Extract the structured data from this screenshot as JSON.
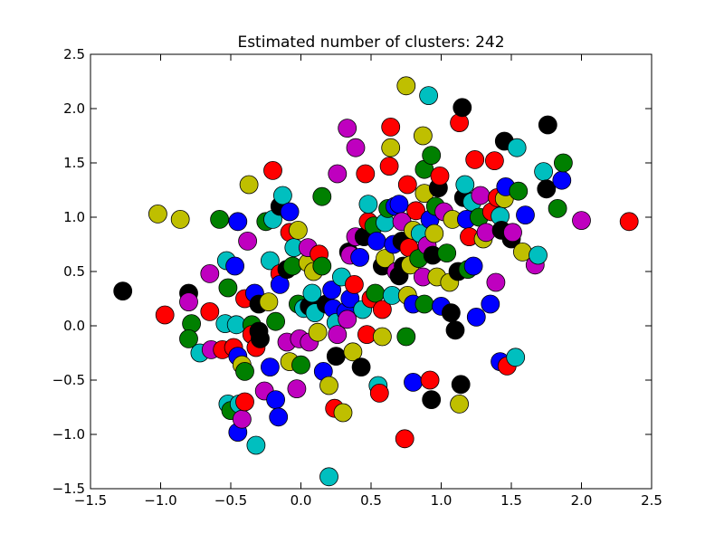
{
  "chart_data": {
    "type": "scatter",
    "title": "Estimated number of clusters: 242",
    "xlabel": "",
    "ylabel": "",
    "xlim": [
      -1.5,
      2.5
    ],
    "ylim": [
      -1.5,
      2.5
    ],
    "xticks": [
      "−1.5",
      "−1.0",
      "−0.5",
      "0.0",
      "0.5",
      "1.0",
      "1.5",
      "2.0",
      "2.5"
    ],
    "yticks": [
      "−1.5",
      "−1.0",
      "−0.5",
      "0.0",
      "0.5",
      "1.0",
      "1.5",
      "2.0",
      "2.5"
    ],
    "grid": false,
    "legend": "none",
    "colors": {
      "b": "#0000ff",
      "g": "#008000",
      "r": "#ff0000",
      "c": "#00bfbf",
      "m": "#bf00bf",
      "y": "#bfbf00",
      "k": "#000000"
    },
    "points": [
      {
        "x": -1.27,
        "y": 0.32,
        "c": "k"
      },
      {
        "x": -0.97,
        "y": 0.1,
        "c": "r"
      },
      {
        "x": -1.02,
        "y": 1.03,
        "c": "y"
      },
      {
        "x": -0.86,
        "y": 0.98,
        "c": "y"
      },
      {
        "x": -0.8,
        "y": 0.3,
        "c": "k"
      },
      {
        "x": -0.8,
        "y": 0.22,
        "c": "m"
      },
      {
        "x": -0.78,
        "y": 0.02,
        "c": "g"
      },
      {
        "x": -0.8,
        "y": -0.12,
        "c": "g"
      },
      {
        "x": -0.72,
        "y": -0.25,
        "c": "c"
      },
      {
        "x": -0.65,
        "y": 0.13,
        "c": "r"
      },
      {
        "x": -0.64,
        "y": -0.22,
        "c": "m"
      },
      {
        "x": -0.65,
        "y": 0.48,
        "c": "m"
      },
      {
        "x": -0.58,
        "y": 0.98,
        "c": "g"
      },
      {
        "x": -0.56,
        "y": -0.22,
        "c": "r"
      },
      {
        "x": -0.54,
        "y": 0.02,
        "c": "c"
      },
      {
        "x": -0.53,
        "y": 0.6,
        "c": "c"
      },
      {
        "x": -0.52,
        "y": 0.35,
        "c": "g"
      },
      {
        "x": -0.52,
        "y": -0.72,
        "c": "c"
      },
      {
        "x": -0.5,
        "y": -0.78,
        "c": "g"
      },
      {
        "x": -0.48,
        "y": -0.2,
        "c": "r"
      },
      {
        "x": -0.47,
        "y": 0.55,
        "c": "b"
      },
      {
        "x": -0.46,
        "y": 0.01,
        "c": "c"
      },
      {
        "x": -0.45,
        "y": -0.98,
        "c": "b"
      },
      {
        "x": -0.44,
        "y": -0.72,
        "c": "c"
      },
      {
        "x": -0.45,
        "y": -0.28,
        "c": "b"
      },
      {
        "x": -0.45,
        "y": 0.96,
        "c": "b"
      },
      {
        "x": -0.42,
        "y": -0.36,
        "c": "y"
      },
      {
        "x": -0.42,
        "y": -0.86,
        "c": "m"
      },
      {
        "x": -0.4,
        "y": -0.7,
        "c": "r"
      },
      {
        "x": -0.4,
        "y": -0.42,
        "c": "g"
      },
      {
        "x": -0.4,
        "y": 0.25,
        "c": "r"
      },
      {
        "x": -0.38,
        "y": 0.78,
        "c": "m"
      },
      {
        "x": -0.37,
        "y": 1.3,
        "c": "y"
      },
      {
        "x": -0.35,
        "y": 0.01,
        "c": "g"
      },
      {
        "x": -0.35,
        "y": -0.08,
        "c": "r"
      },
      {
        "x": -0.33,
        "y": 0.3,
        "c": "b"
      },
      {
        "x": -0.32,
        "y": -0.2,
        "c": "r"
      },
      {
        "x": -0.32,
        "y": -1.1,
        "c": "c"
      },
      {
        "x": -0.3,
        "y": 0.2,
        "c": "k"
      },
      {
        "x": -0.3,
        "y": -0.05,
        "c": "k"
      },
      {
        "x": -0.29,
        "y": -0.12,
        "c": "k"
      },
      {
        "x": -0.26,
        "y": -0.6,
        "c": "m"
      },
      {
        "x": -0.25,
        "y": 0.96,
        "c": "g"
      },
      {
        "x": -0.23,
        "y": 0.22,
        "c": "y"
      },
      {
        "x": -0.22,
        "y": 0.6,
        "c": "c"
      },
      {
        "x": -0.22,
        "y": -0.38,
        "c": "b"
      },
      {
        "x": -0.2,
        "y": 1.43,
        "c": "r"
      },
      {
        "x": -0.2,
        "y": 0.98,
        "c": "c"
      },
      {
        "x": -0.18,
        "y": 0.04,
        "c": "g"
      },
      {
        "x": -0.18,
        "y": -0.68,
        "c": "b"
      },
      {
        "x": -0.16,
        "y": -0.84,
        "c": "b"
      },
      {
        "x": -0.15,
        "y": 1.1,
        "c": "k"
      },
      {
        "x": -0.15,
        "y": 0.48,
        "c": "r"
      },
      {
        "x": -0.15,
        "y": 0.38,
        "c": "b"
      },
      {
        "x": -0.13,
        "y": 1.2,
        "c": "c"
      },
      {
        "x": -0.1,
        "y": -0.15,
        "c": "m"
      },
      {
        "x": -0.1,
        "y": 0.52,
        "c": "k"
      },
      {
        "x": -0.08,
        "y": -0.33,
        "c": "y"
      },
      {
        "x": -0.08,
        "y": 1.05,
        "c": "b"
      },
      {
        "x": -0.08,
        "y": 0.86,
        "c": "r"
      },
      {
        "x": -0.06,
        "y": 0.55,
        "c": "g"
      },
      {
        "x": -0.05,
        "y": 0.72,
        "c": "c"
      },
      {
        "x": -0.03,
        "y": -0.58,
        "c": "m"
      },
      {
        "x": -0.02,
        "y": 0.2,
        "c": "g"
      },
      {
        "x": -0.02,
        "y": 0.88,
        "c": "y"
      },
      {
        "x": -0.01,
        "y": -0.12,
        "c": "m"
      },
      {
        "x": 0.0,
        "y": -0.36,
        "c": "g"
      },
      {
        "x": 0.02,
        "y": 0.16,
        "c": "c"
      },
      {
        "x": 0.05,
        "y": 0.58,
        "c": "y"
      },
      {
        "x": 0.05,
        "y": 0.72,
        "c": "m"
      },
      {
        "x": 0.06,
        "y": 0.18,
        "c": "k"
      },
      {
        "x": 0.06,
        "y": -0.15,
        "c": "m"
      },
      {
        "x": 0.08,
        "y": 0.3,
        "c": "c"
      },
      {
        "x": 0.09,
        "y": 0.5,
        "c": "y"
      },
      {
        "x": 0.1,
        "y": 0.12,
        "c": "c"
      },
      {
        "x": 0.12,
        "y": -0.06,
        "c": "y"
      },
      {
        "x": 0.13,
        "y": 0.66,
        "c": "r"
      },
      {
        "x": 0.15,
        "y": 0.55,
        "c": "g"
      },
      {
        "x": 0.15,
        "y": 1.19,
        "c": "g"
      },
      {
        "x": 0.16,
        "y": -0.42,
        "c": "b"
      },
      {
        "x": 0.18,
        "y": 0.2,
        "c": "k"
      },
      {
        "x": 0.2,
        "y": -0.55,
        "c": "y"
      },
      {
        "x": 0.2,
        "y": -1.39,
        "c": "c"
      },
      {
        "x": 0.22,
        "y": 0.33,
        "c": "b"
      },
      {
        "x": 0.23,
        "y": 0.16,
        "c": "b"
      },
      {
        "x": 0.24,
        "y": -0.76,
        "c": "r"
      },
      {
        "x": 0.25,
        "y": 0.03,
        "c": "c"
      },
      {
        "x": 0.25,
        "y": -0.28,
        "c": "k"
      },
      {
        "x": 0.26,
        "y": -0.08,
        "c": "m"
      },
      {
        "x": 0.26,
        "y": 1.4,
        "c": "m"
      },
      {
        "x": 0.29,
        "y": 0.45,
        "c": "c"
      },
      {
        "x": 0.3,
        "y": -0.8,
        "c": "y"
      },
      {
        "x": 0.32,
        "y": 0.13,
        "c": "b"
      },
      {
        "x": 0.33,
        "y": 0.06,
        "c": "m"
      },
      {
        "x": 0.33,
        "y": 1.82,
        "c": "m"
      },
      {
        "x": 0.34,
        "y": 0.68,
        "c": "k"
      },
      {
        "x": 0.35,
        "y": 0.25,
        "c": "b"
      },
      {
        "x": 0.35,
        "y": 0.65,
        "c": "m"
      },
      {
        "x": 0.37,
        "y": -0.24,
        "c": "y"
      },
      {
        "x": 0.38,
        "y": 0.38,
        "c": "r"
      },
      {
        "x": 0.39,
        "y": 0.82,
        "c": "m"
      },
      {
        "x": 0.39,
        "y": 1.64,
        "c": "m"
      },
      {
        "x": 0.42,
        "y": 0.63,
        "c": "b"
      },
      {
        "x": 0.43,
        "y": -0.38,
        "c": "k"
      },
      {
        "x": 0.44,
        "y": 0.15,
        "c": "c"
      },
      {
        "x": 0.45,
        "y": 0.82,
        "c": "k"
      },
      {
        "x": 0.46,
        "y": 1.4,
        "c": "r"
      },
      {
        "x": 0.47,
        "y": -0.08,
        "c": "r"
      },
      {
        "x": 0.48,
        "y": 0.96,
        "c": "r"
      },
      {
        "x": 0.48,
        "y": 1.12,
        "c": "c"
      },
      {
        "x": 0.5,
        "y": 0.25,
        "c": "r"
      },
      {
        "x": 0.52,
        "y": 0.92,
        "c": "g"
      },
      {
        "x": 0.53,
        "y": 0.3,
        "c": "g"
      },
      {
        "x": 0.54,
        "y": 0.78,
        "c": "b"
      },
      {
        "x": 0.55,
        "y": -0.55,
        "c": "c"
      },
      {
        "x": 0.56,
        "y": -0.62,
        "c": "r"
      },
      {
        "x": 0.58,
        "y": 0.55,
        "c": "k"
      },
      {
        "x": 0.58,
        "y": -0.1,
        "c": "y"
      },
      {
        "x": 0.58,
        "y": 0.15,
        "c": "r"
      },
      {
        "x": 0.6,
        "y": 0.62,
        "c": "y"
      },
      {
        "x": 0.6,
        "y": 0.95,
        "c": "c"
      },
      {
        "x": 0.62,
        "y": 1.08,
        "c": "g"
      },
      {
        "x": 0.63,
        "y": 1.47,
        "c": "r"
      },
      {
        "x": 0.64,
        "y": 1.83,
        "c": "r"
      },
      {
        "x": 0.64,
        "y": 1.64,
        "c": "y"
      },
      {
        "x": 0.65,
        "y": 0.28,
        "c": "c"
      },
      {
        "x": 0.66,
        "y": 0.75,
        "c": "b"
      },
      {
        "x": 0.67,
        "y": 1.1,
        "c": "b"
      },
      {
        "x": 0.68,
        "y": 0.5,
        "c": "m"
      },
      {
        "x": 0.7,
        "y": 1.12,
        "c": "b"
      },
      {
        "x": 0.7,
        "y": 0.46,
        "c": "k"
      },
      {
        "x": 0.72,
        "y": 0.78,
        "c": "k"
      },
      {
        "x": 0.72,
        "y": 0.96,
        "c": "m"
      },
      {
        "x": 0.73,
        "y": 0.55,
        "c": "k"
      },
      {
        "x": 0.74,
        "y": -1.04,
        "c": "r"
      },
      {
        "x": 0.75,
        "y": -0.1,
        "c": "g"
      },
      {
        "x": 0.75,
        "y": 2.21,
        "c": "y"
      },
      {
        "x": 0.76,
        "y": 1.3,
        "c": "r"
      },
      {
        "x": 0.76,
        "y": 0.28,
        "c": "y"
      },
      {
        "x": 0.77,
        "y": 0.72,
        "c": "r"
      },
      {
        "x": 0.78,
        "y": 0.56,
        "c": "y"
      },
      {
        "x": 0.8,
        "y": -0.52,
        "c": "b"
      },
      {
        "x": 0.8,
        "y": 0.88,
        "c": "y"
      },
      {
        "x": 0.8,
        "y": 0.2,
        "c": "b"
      },
      {
        "x": 0.82,
        "y": 1.06,
        "c": "r"
      },
      {
        "x": 0.84,
        "y": 0.62,
        "c": "g"
      },
      {
        "x": 0.85,
        "y": 0.85,
        "c": "c"
      },
      {
        "x": 0.87,
        "y": 0.45,
        "c": "m"
      },
      {
        "x": 0.87,
        "y": 1.75,
        "c": "y"
      },
      {
        "x": 0.88,
        "y": 1.22,
        "c": "y"
      },
      {
        "x": 0.88,
        "y": 1.44,
        "c": "g"
      },
      {
        "x": 0.88,
        "y": 0.2,
        "c": "g"
      },
      {
        "x": 0.9,
        "y": 0.74,
        "c": "m"
      },
      {
        "x": 0.91,
        "y": 2.12,
        "c": "c"
      },
      {
        "x": 0.92,
        "y": -0.5,
        "c": "r"
      },
      {
        "x": 0.92,
        "y": 0.98,
        "c": "b"
      },
      {
        "x": 0.93,
        "y": 1.57,
        "c": "g"
      },
      {
        "x": 0.93,
        "y": -0.68,
        "c": "k"
      },
      {
        "x": 0.94,
        "y": 0.65,
        "c": "k"
      },
      {
        "x": 0.95,
        "y": 0.85,
        "c": "y"
      },
      {
        "x": 0.96,
        "y": 1.1,
        "c": "g"
      },
      {
        "x": 0.97,
        "y": 0.45,
        "c": "y"
      },
      {
        "x": 0.98,
        "y": 1.27,
        "c": "k"
      },
      {
        "x": 0.99,
        "y": 1.38,
        "c": "r"
      },
      {
        "x": 1.0,
        "y": 0.18,
        "c": "b"
      },
      {
        "x": 1.02,
        "y": 1.05,
        "c": "m"
      },
      {
        "x": 1.04,
        "y": 0.67,
        "c": "g"
      },
      {
        "x": 1.06,
        "y": 0.4,
        "c": "y"
      },
      {
        "x": 1.07,
        "y": 0.12,
        "c": "k"
      },
      {
        "x": 1.08,
        "y": 0.98,
        "c": "y"
      },
      {
        "x": 1.1,
        "y": -0.04,
        "c": "k"
      },
      {
        "x": 1.12,
        "y": 0.5,
        "c": "k"
      },
      {
        "x": 1.13,
        "y": -0.72,
        "c": "y"
      },
      {
        "x": 1.13,
        "y": 1.87,
        "c": "r"
      },
      {
        "x": 1.14,
        "y": -0.54,
        "c": "k"
      },
      {
        "x": 1.15,
        "y": 2.01,
        "c": "k"
      },
      {
        "x": 1.16,
        "y": 1.18,
        "c": "k"
      },
      {
        "x": 1.17,
        "y": 1.3,
        "c": "c"
      },
      {
        "x": 1.18,
        "y": 0.98,
        "c": "b"
      },
      {
        "x": 1.19,
        "y": 0.52,
        "c": "g"
      },
      {
        "x": 1.2,
        "y": 0.82,
        "c": "r"
      },
      {
        "x": 1.22,
        "y": 1.14,
        "c": "c"
      },
      {
        "x": 1.23,
        "y": 0.55,
        "c": "b"
      },
      {
        "x": 1.24,
        "y": 1.53,
        "c": "r"
      },
      {
        "x": 1.25,
        "y": 0.08,
        "c": "b"
      },
      {
        "x": 1.27,
        "y": 1.0,
        "c": "g"
      },
      {
        "x": 1.28,
        "y": 1.2,
        "c": "m"
      },
      {
        "x": 1.3,
        "y": 0.8,
        "c": "y"
      },
      {
        "x": 1.32,
        "y": 0.86,
        "c": "m"
      },
      {
        "x": 1.35,
        "y": 0.2,
        "c": "b"
      },
      {
        "x": 1.36,
        "y": 1.05,
        "c": "r"
      },
      {
        "x": 1.38,
        "y": 1.52,
        "c": "r"
      },
      {
        "x": 1.39,
        "y": 0.4,
        "c": "m"
      },
      {
        "x": 1.4,
        "y": 1.18,
        "c": "r"
      },
      {
        "x": 1.42,
        "y": 1.01,
        "c": "c"
      },
      {
        "x": 1.42,
        "y": -0.33,
        "c": "b"
      },
      {
        "x": 1.43,
        "y": 0.88,
        "c": "k"
      },
      {
        "x": 1.45,
        "y": 1.7,
        "c": "k"
      },
      {
        "x": 1.45,
        "y": 1.17,
        "c": "y"
      },
      {
        "x": 1.46,
        "y": 1.28,
        "c": "b"
      },
      {
        "x": 1.47,
        "y": -0.37,
        "c": "r"
      },
      {
        "x": 1.5,
        "y": 0.8,
        "c": "k"
      },
      {
        "x": 1.51,
        "y": 0.86,
        "c": "m"
      },
      {
        "x": 1.53,
        "y": -0.29,
        "c": "c"
      },
      {
        "x": 1.54,
        "y": 1.64,
        "c": "c"
      },
      {
        "x": 1.55,
        "y": 1.24,
        "c": "g"
      },
      {
        "x": 1.58,
        "y": 0.68,
        "c": "y"
      },
      {
        "x": 1.6,
        "y": 1.02,
        "c": "b"
      },
      {
        "x": 1.67,
        "y": 0.56,
        "c": "m"
      },
      {
        "x": 1.69,
        "y": 0.65,
        "c": "c"
      },
      {
        "x": 1.73,
        "y": 1.42,
        "c": "c"
      },
      {
        "x": 1.75,
        "y": 1.26,
        "c": "k"
      },
      {
        "x": 1.76,
        "y": 1.85,
        "c": "k"
      },
      {
        "x": 1.83,
        "y": 1.08,
        "c": "g"
      },
      {
        "x": 1.86,
        "y": 1.34,
        "c": "b"
      },
      {
        "x": 1.87,
        "y": 1.5,
        "c": "g"
      },
      {
        "x": 2.0,
        "y": 0.97,
        "c": "m"
      },
      {
        "x": 2.34,
        "y": 0.96,
        "c": "r"
      }
    ]
  }
}
